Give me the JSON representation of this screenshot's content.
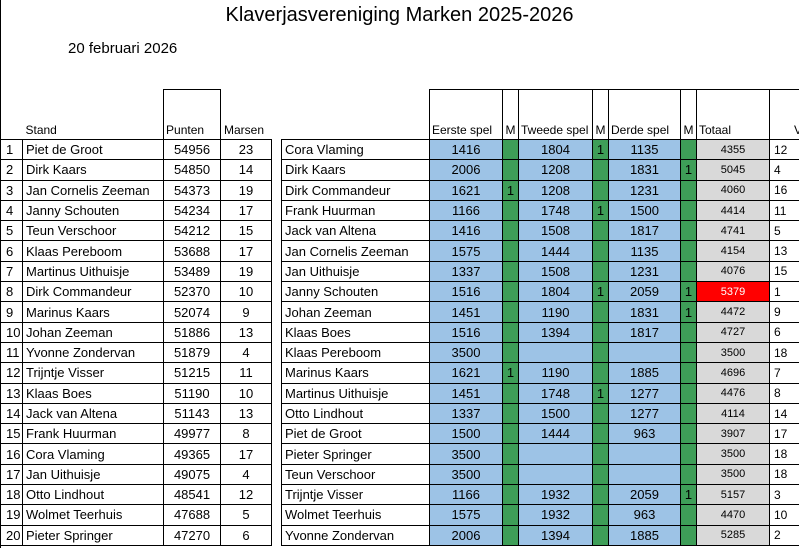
{
  "title": "Klaverjasvereniging Marken 2025-2026",
  "date": "20 februari 2026",
  "standings": {
    "headers": {
      "stand": "Stand",
      "punten": "Punten",
      "marsen": "Marsen"
    },
    "rows": [
      {
        "pos": "1",
        "name": "Piet de Groot",
        "punten": "54956",
        "marsen": "23"
      },
      {
        "pos": "2",
        "name": "Dirk Kaars",
        "punten": "54850",
        "marsen": "14"
      },
      {
        "pos": "3",
        "name": "Jan Cornelis Zeeman",
        "punten": "54373",
        "marsen": "19"
      },
      {
        "pos": "4",
        "name": "Janny Schouten",
        "punten": "54234",
        "marsen": "17"
      },
      {
        "pos": "5",
        "name": "Teun Verschoor",
        "punten": "54212",
        "marsen": "15"
      },
      {
        "pos": "6",
        "name": "Klaas Pereboom",
        "punten": "53688",
        "marsen": "17"
      },
      {
        "pos": "7",
        "name": "Martinus Uithuisje",
        "punten": "53489",
        "marsen": "19"
      },
      {
        "pos": "8",
        "name": "Dirk Commandeur",
        "punten": "52370",
        "marsen": "10"
      },
      {
        "pos": "9",
        "name": "Marinus Kaars",
        "punten": "52074",
        "marsen": "9"
      },
      {
        "pos": "10",
        "name": "Johan Zeeman",
        "punten": "51886",
        "marsen": "13"
      },
      {
        "pos": "11",
        "name": "Yvonne Zondervan",
        "punten": "51879",
        "marsen": "4"
      },
      {
        "pos": "12",
        "name": "Trijntje Visser",
        "punten": "51215",
        "marsen": "11"
      },
      {
        "pos": "13",
        "name": "Klaas Boes",
        "punten": "51190",
        "marsen": "10"
      },
      {
        "pos": "14",
        "name": "Jack van Altena",
        "punten": "51143",
        "marsen": "13"
      },
      {
        "pos": "15",
        "name": "Frank Huurman",
        "punten": "49977",
        "marsen": "8"
      },
      {
        "pos": "16",
        "name": "Cora Vlaming",
        "punten": "49365",
        "marsen": "17"
      },
      {
        "pos": "17",
        "name": "Jan Uithuisje",
        "punten": "49075",
        "marsen": "4"
      },
      {
        "pos": "18",
        "name": "Otto Lindhout",
        "punten": "48541",
        "marsen": "12"
      },
      {
        "pos": "19",
        "name": "Wolmet Teerhuis",
        "punten": "47688",
        "marsen": "5"
      },
      {
        "pos": "20",
        "name": "Pieter Springer",
        "punten": "47270",
        "marsen": "6"
      }
    ]
  },
  "results": {
    "headers": {
      "eerste": "Eerste spel",
      "m": "M",
      "tweede": "Tweede spel",
      "derde": "Derde spel",
      "totaal": "Totaal",
      "vrij": "Vri"
    },
    "rows": [
      {
        "name": "Cora Vlaming",
        "s1": "1416",
        "m1": "",
        "s2": "1804",
        "m2": "1",
        "s3": "1135",
        "m3": "",
        "totaal": "4355",
        "vr": "12"
      },
      {
        "name": "Dirk Kaars",
        "s1": "2006",
        "m1": "",
        "s2": "1208",
        "m2": "",
        "s3": "1831",
        "m3": "1",
        "totaal": "5045",
        "vr": "4"
      },
      {
        "name": "Dirk Commandeur",
        "s1": "1621",
        "m1": "1",
        "s2": "1208",
        "m2": "",
        "s3": "1231",
        "m3": "",
        "totaal": "4060",
        "vr": "16"
      },
      {
        "name": "Frank Huurman",
        "s1": "1166",
        "m1": "",
        "s2": "1748",
        "m2": "1",
        "s3": "1500",
        "m3": "",
        "totaal": "4414",
        "vr": "11"
      },
      {
        "name": "Jack van Altena",
        "s1": "1416",
        "m1": "",
        "s2": "1508",
        "m2": "",
        "s3": "1817",
        "m3": "",
        "totaal": "4741",
        "vr": "5"
      },
      {
        "name": "Jan Cornelis Zeeman",
        "s1": "1575",
        "m1": "",
        "s2": "1444",
        "m2": "",
        "s3": "1135",
        "m3": "",
        "totaal": "4154",
        "vr": "13"
      },
      {
        "name": "Jan Uithuisje",
        "s1": "1337",
        "m1": "",
        "s2": "1508",
        "m2": "",
        "s3": "1231",
        "m3": "",
        "totaal": "4076",
        "vr": "15"
      },
      {
        "name": "Janny Schouten",
        "s1": "1516",
        "m1": "",
        "s2": "1804",
        "m2": "1",
        "s3": "2059",
        "m3": "1",
        "totaal": "5379",
        "vr": "1",
        "highlight": true
      },
      {
        "name": "Johan Zeeman",
        "s1": "1451",
        "m1": "",
        "s2": "1190",
        "m2": "",
        "s3": "1831",
        "m3": "1",
        "totaal": "4472",
        "vr": "9"
      },
      {
        "name": "Klaas Boes",
        "s1": "1516",
        "m1": "",
        "s2": "1394",
        "m2": "",
        "s3": "1817",
        "m3": "",
        "totaal": "4727",
        "vr": "6"
      },
      {
        "name": "Klaas Pereboom",
        "s1": "3500",
        "m1": "",
        "s2": "",
        "m2": "",
        "s3": "",
        "m3": "",
        "totaal": "3500",
        "vr": "18",
        "vrij": true
      },
      {
        "name": "Marinus Kaars",
        "s1": "1621",
        "m1": "1",
        "s2": "1190",
        "m2": "",
        "s3": "1885",
        "m3": "",
        "totaal": "4696",
        "vr": "7"
      },
      {
        "name": "Martinus Uithuisje",
        "s1": "1451",
        "m1": "",
        "s2": "1748",
        "m2": "1",
        "s3": "1277",
        "m3": "",
        "totaal": "4476",
        "vr": "8"
      },
      {
        "name": "Otto Lindhout",
        "s1": "1337",
        "m1": "",
        "s2": "1500",
        "m2": "",
        "s3": "1277",
        "m3": "",
        "totaal": "4114",
        "vr": "14"
      },
      {
        "name": "Piet de Groot",
        "s1": "1500",
        "m1": "",
        "s2": "1444",
        "m2": "",
        "s3": "963",
        "m3": "",
        "totaal": "3907",
        "vr": "17"
      },
      {
        "name": "Pieter Springer",
        "s1": "3500",
        "m1": "",
        "s2": "",
        "m2": "",
        "s3": "",
        "m3": "",
        "totaal": "3500",
        "vr": "18",
        "vrij": true
      },
      {
        "name": "Teun Verschoor",
        "s1": "3500",
        "m1": "",
        "s2": "",
        "m2": "",
        "s3": "",
        "m3": "",
        "totaal": "3500",
        "vr": "18",
        "vrij": true
      },
      {
        "name": "Trijntje Visser",
        "s1": "1166",
        "m1": "",
        "s2": "1932",
        "m2": "",
        "s3": "2059",
        "m3": "1",
        "totaal": "5157",
        "vr": "3"
      },
      {
        "name": "Wolmet Teerhuis",
        "s1": "1575",
        "m1": "",
        "s2": "1932",
        "m2": "",
        "s3": "963",
        "m3": "",
        "totaal": "4470",
        "vr": "10"
      },
      {
        "name": "Yvonne Zondervan",
        "s1": "2006",
        "m1": "",
        "s2": "1394",
        "m2": "",
        "s3": "1885",
        "m3": "",
        "totaal": "5285",
        "vr": "2"
      }
    ]
  },
  "colors": {
    "score_cell": "#9dc3e6",
    "mars_cell": "#3e9e58",
    "total_cell": "#d9d9d9",
    "best_total": "#ff0000"
  }
}
